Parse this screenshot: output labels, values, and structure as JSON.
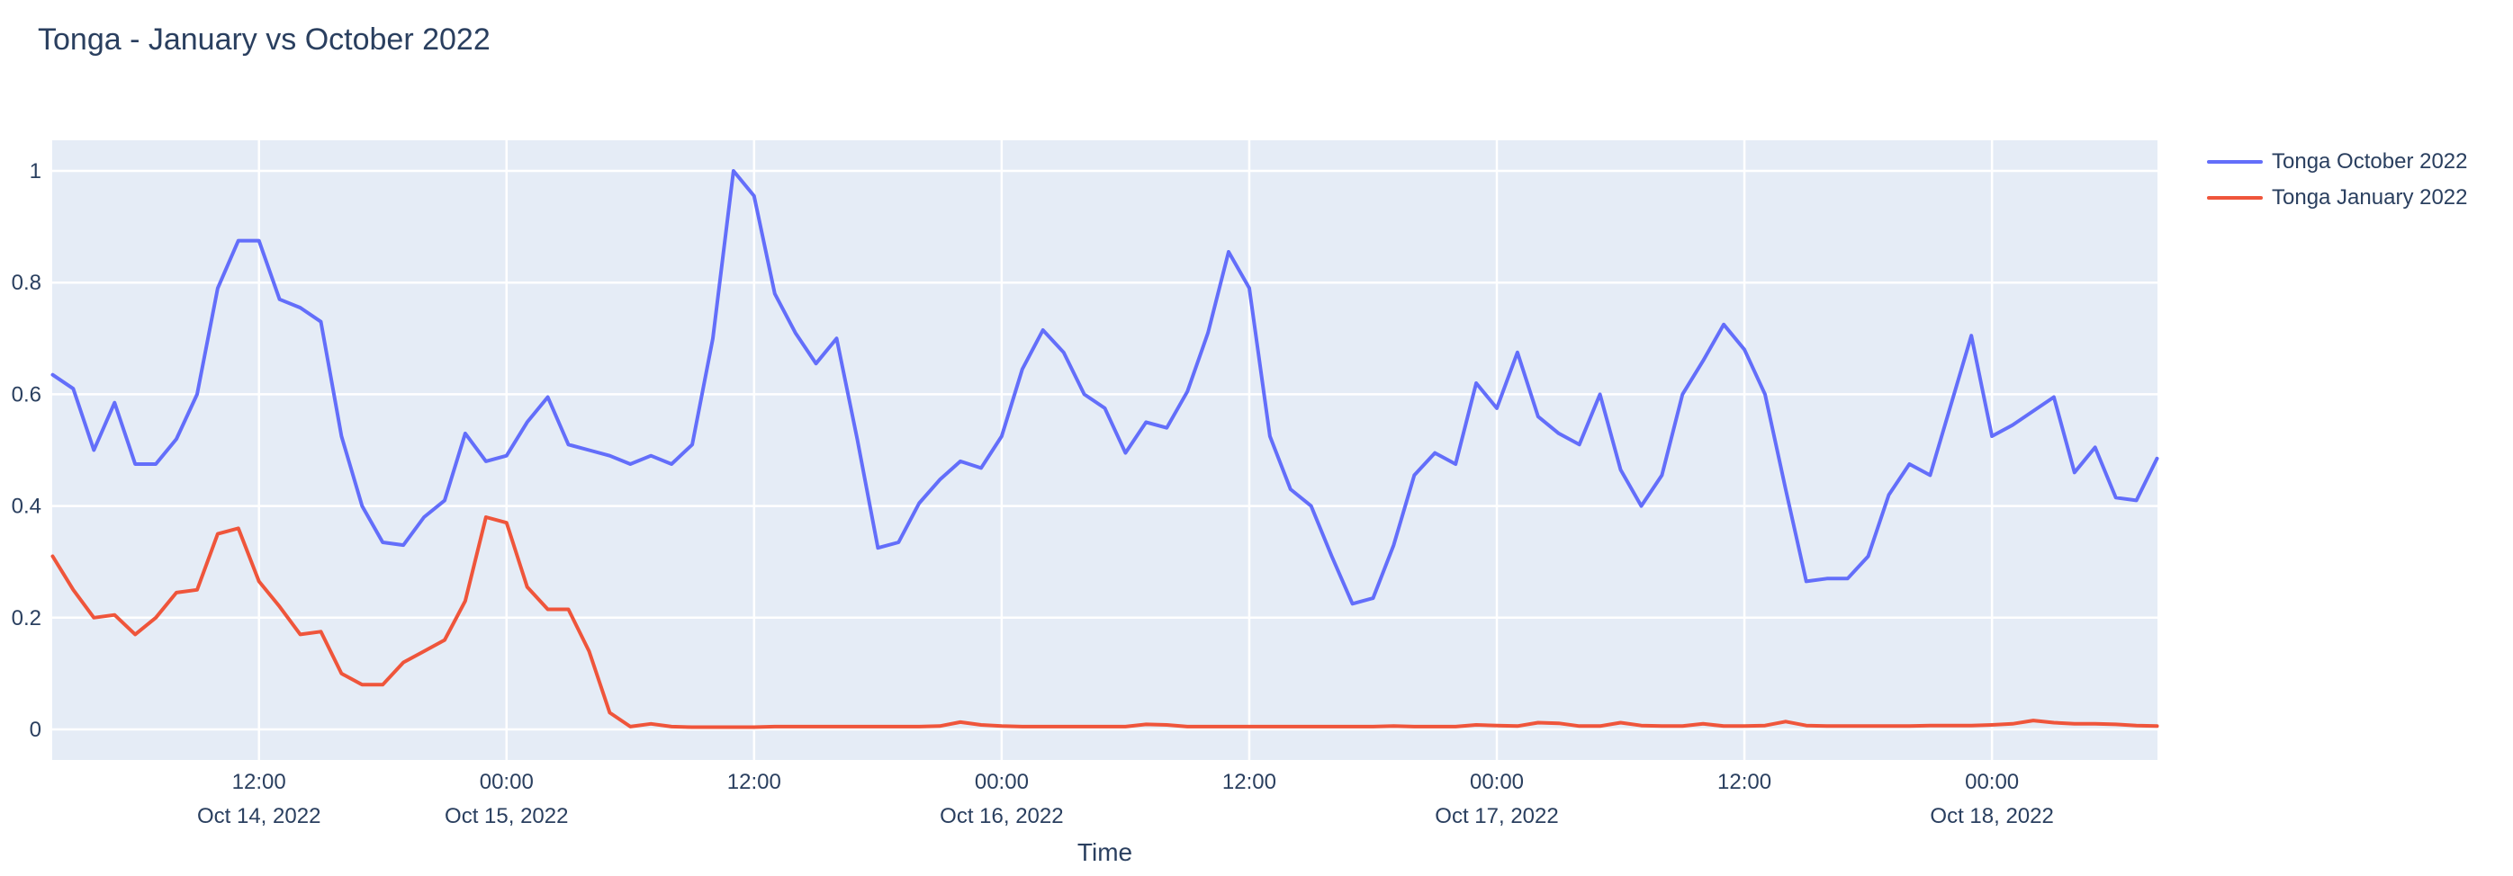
{
  "chart": {
    "title": "Tonga - January vs October 2022",
    "text_color": "#2a3f5f",
    "background": "#ffffff"
  },
  "chart_data": {
    "type": "line",
    "title": "Tonga - January vs October 2022",
    "xlabel": "Time",
    "ylabel": "",
    "plot_bg_color": "#e5ecf6",
    "grid_color": "#ffffff",
    "grid": true,
    "legend_position": "top-right-outside",
    "x_start": "Oct 14, 2022 02:00",
    "x_end": "Oct 18, 2022 08:00",
    "x_step_hours": 1,
    "ylim": [
      -0.055,
      1.055
    ],
    "y_ticks": [
      "0",
      "0.2",
      "0.4",
      "0.6",
      "0.8",
      "1"
    ],
    "y_tick_values": [
      0,
      0.2,
      0.4,
      0.6,
      0.8,
      1
    ],
    "x_ticks": [
      {
        "time": "12:00",
        "date": "Oct 14, 2022",
        "offset_hours": 10
      },
      {
        "time": "00:00",
        "date": "Oct 15, 2022",
        "offset_hours": 22
      },
      {
        "time": "12:00",
        "date": "",
        "offset_hours": 34
      },
      {
        "time": "00:00",
        "date": "Oct 16, 2022",
        "offset_hours": 46
      },
      {
        "time": "12:00",
        "date": "",
        "offset_hours": 58
      },
      {
        "time": "00:00",
        "date": "Oct 17, 2022",
        "offset_hours": 70
      },
      {
        "time": "12:00",
        "date": "",
        "offset_hours": 82
      },
      {
        "time": "00:00",
        "date": "Oct 18, 2022",
        "offset_hours": 94
      }
    ],
    "series": [
      {
        "name": "Tonga October 2022",
        "color": "#636efa",
        "values": [
          0.635,
          0.61,
          0.5,
          0.585,
          0.475,
          0.475,
          0.52,
          0.6,
          0.79,
          0.875,
          0.875,
          0.77,
          0.755,
          0.73,
          0.525,
          0.4,
          0.335,
          0.33,
          0.38,
          0.41,
          0.53,
          0.48,
          0.49,
          0.55,
          0.595,
          0.51,
          0.5,
          0.49,
          0.475,
          0.49,
          0.475,
          0.51,
          0.7,
          1.0,
          0.955,
          0.78,
          0.71,
          0.655,
          0.7,
          0.52,
          0.325,
          0.335,
          0.405,
          0.447,
          0.48,
          0.468,
          0.525,
          0.645,
          0.715,
          0.675,
          0.6,
          0.575,
          0.495,
          0.55,
          0.54,
          0.605,
          0.71,
          0.855,
          0.79,
          0.525,
          0.43,
          0.4,
          0.31,
          0.225,
          0.235,
          0.33,
          0.455,
          0.495,
          0.475,
          0.62,
          0.575,
          0.675,
          0.56,
          0.53,
          0.51,
          0.6,
          0.465,
          0.4,
          0.455,
          0.6,
          0.66,
          0.725,
          0.68,
          0.6,
          0.43,
          0.265,
          0.27,
          0.27,
          0.31,
          0.42,
          0.475,
          0.455,
          0.58,
          0.705,
          0.525,
          0.545,
          0.57,
          0.595,
          0.46,
          0.505,
          0.415,
          0.41,
          0.485
        ]
      },
      {
        "name": "Tonga January 2022",
        "color": "#ef553b",
        "values": [
          0.31,
          0.25,
          0.2,
          0.205,
          0.17,
          0.2,
          0.245,
          0.25,
          0.35,
          0.36,
          0.265,
          0.22,
          0.17,
          0.175,
          0.1,
          0.08,
          0.08,
          0.12,
          0.14,
          0.16,
          0.23,
          0.38,
          0.37,
          0.255,
          0.215,
          0.215,
          0.14,
          0.03,
          0.005,
          0.01,
          0.005,
          0.004,
          0.004,
          0.004,
          0.004,
          0.005,
          0.005,
          0.005,
          0.005,
          0.005,
          0.005,
          0.005,
          0.005,
          0.006,
          0.013,
          0.008,
          0.006,
          0.005,
          0.005,
          0.005,
          0.005,
          0.005,
          0.005,
          0.009,
          0.008,
          0.005,
          0.005,
          0.005,
          0.005,
          0.005,
          0.005,
          0.005,
          0.005,
          0.005,
          0.005,
          0.006,
          0.005,
          0.005,
          0.005,
          0.008,
          0.007,
          0.006,
          0.012,
          0.011,
          0.006,
          0.006,
          0.012,
          0.007,
          0.006,
          0.006,
          0.01,
          0.006,
          0.006,
          0.007,
          0.014,
          0.007,
          0.006,
          0.006,
          0.006,
          0.006,
          0.006,
          0.007,
          0.007,
          0.007,
          0.008,
          0.01,
          0.016,
          0.012,
          0.01,
          0.01,
          0.009,
          0.007,
          0.006
        ]
      }
    ]
  }
}
